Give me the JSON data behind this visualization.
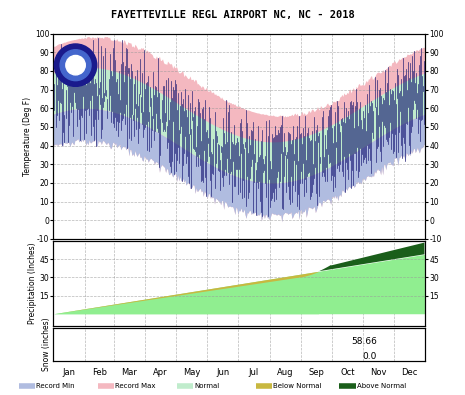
{
  "title": "FAYETTEVILLE REGL AIRPORT NC, NC - 2018",
  "months": [
    "Jan",
    "Feb",
    "Mar",
    "Apr",
    "May",
    "Jun",
    "Jul",
    "Aug",
    "Sep",
    "Oct",
    "Nov",
    "Dec"
  ],
  "month_starts": [
    0,
    31,
    59,
    90,
    120,
    151,
    181,
    212,
    243,
    273,
    304,
    334,
    365
  ],
  "ndays": 365,
  "temp_ylim": [
    -10,
    100
  ],
  "temp_yticks": [
    -10,
    0,
    10,
    20,
    30,
    40,
    50,
    60,
    70,
    80,
    90,
    100
  ],
  "precip_ylim": [
    -10,
    60
  ],
  "precip_yticks": [
    15,
    30,
    45
  ],
  "record_min_color": "#b0bce0",
  "record_max_color": "#f4b8c0",
  "normal_band_color": "#c0eccc",
  "daily_line_color": "#0a0a6a",
  "precip_normal_color": "#90ee90",
  "precip_above_color": "#1a5e1a",
  "precip_below_color": "#c8b840",
  "grid_color": "#999999",
  "background_color": "#ffffff",
  "snow_text_58": "58.66",
  "snow_text_00": "0.0",
  "legend_items": [
    "Record Min",
    "Record Max",
    "Normal",
    "Below Normal",
    "Above Normal"
  ],
  "noaa_circle_color": "#1a1a8c",
  "noaa_ring_color": "#4466cc"
}
